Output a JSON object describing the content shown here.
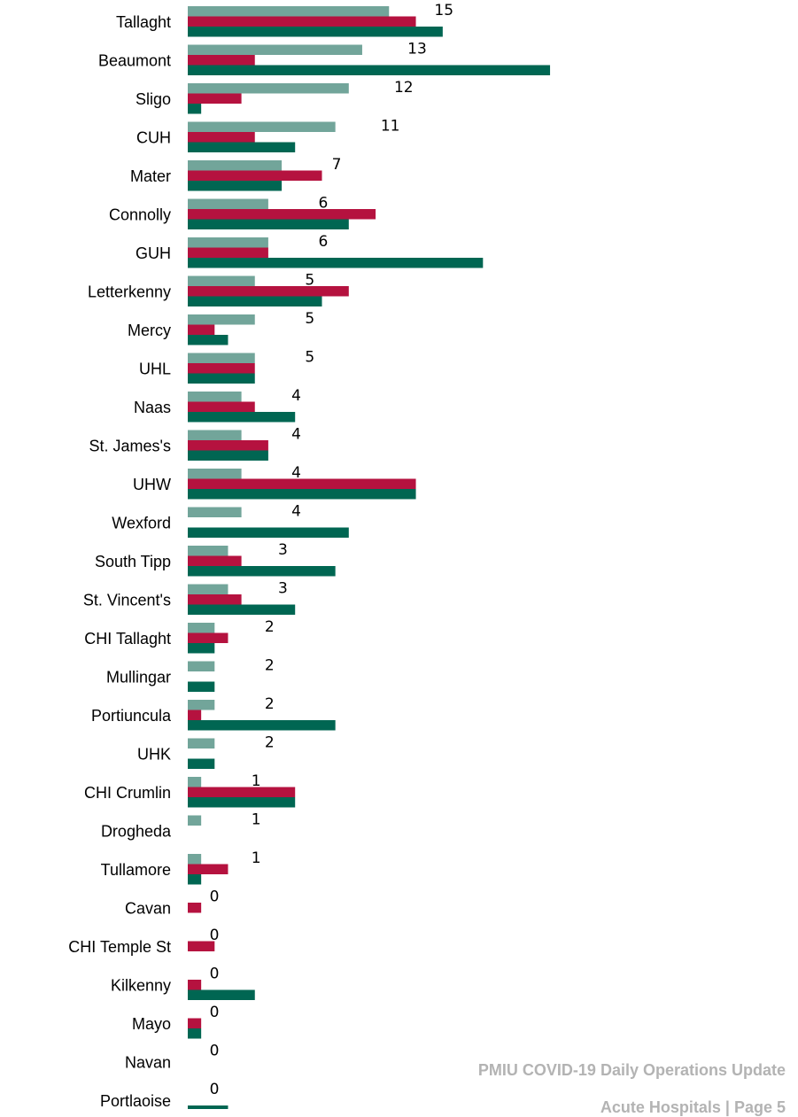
{
  "chart_data": {
    "type": "bar",
    "orientation": "horizontal",
    "categories": [
      "Tallaght",
      "Beaumont",
      "Sligo",
      "CUH",
      "Mater",
      "Connolly",
      "GUH",
      "Letterkenny",
      "Mercy",
      "UHL",
      "Naas",
      "St. James's",
      "UHW",
      "Wexford",
      "South Tipp",
      "St. Vincent's",
      "CHI Tallaght",
      "Mullingar",
      "Portiuncula",
      "UHK",
      "CHI Crumlin",
      "Drogheda",
      "Tullamore",
      "Cavan",
      "CHI Temple St",
      "Kilkenny",
      "Mayo",
      "Navan",
      "Portlaoise"
    ],
    "series": [
      {
        "values": [
          15,
          13,
          12,
          11,
          7,
          6,
          6,
          5,
          5,
          5,
          4,
          4,
          4,
          4,
          3,
          3,
          2,
          2,
          2,
          2,
          1,
          1,
          1,
          0,
          0,
          0,
          0,
          0,
          0
        ],
        "color": "#72a59a",
        "data_labels": true
      },
      {
        "values": [
          17,
          5,
          4,
          5,
          10,
          14,
          6,
          12,
          2,
          5,
          5,
          6,
          17,
          0,
          4,
          4,
          3,
          0,
          1,
          0,
          8,
          0,
          3,
          1,
          2,
          1,
          1,
          0,
          0
        ],
        "color": "#b5123f"
      },
      {
        "values": [
          19,
          27,
          1,
          8,
          7,
          12,
          22,
          10,
          3,
          5,
          8,
          6,
          17,
          12,
          11,
          8,
          2,
          2,
          11,
          2,
          8,
          0,
          1,
          0,
          0,
          5,
          1,
          0,
          3
        ],
        "color": "#006652"
      }
    ],
    "xlim": [
      0,
      56
    ],
    "grid": false,
    "legend": "none"
  },
  "footer": {
    "title": "PMIU COVID-19 Daily Operations Update",
    "page": "Acute Hospitals |  Page 5"
  }
}
